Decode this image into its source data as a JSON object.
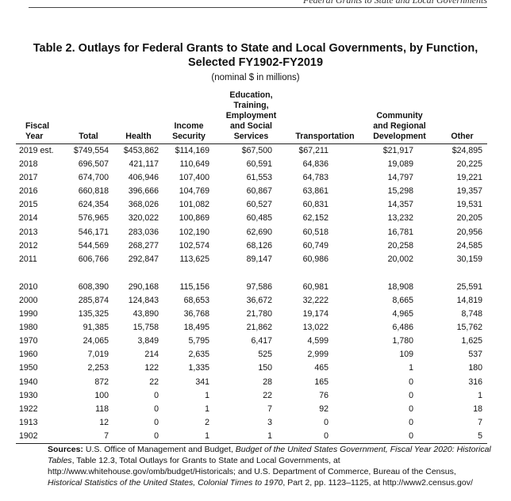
{
  "page": {
    "running_header": "Federal Grants to State and Local Governments",
    "title_line1": "Table 2. Outlays for Federal Grants to State and Local Governments, by Function,",
    "title_line2": "Selected FY1902-FY2019",
    "subtitle": "(nominal $ in millions)"
  },
  "table": {
    "headers": [
      "Fiscal\nYear",
      "Total",
      "Health",
      "Income\nSecurity",
      "Education,\nTraining,\nEmployment\nand Social\nServices",
      "Transportation",
      "Community\nand Regional\nDevelopment",
      "Other"
    ],
    "rows_group1": [
      [
        "2019 est.",
        "$749,554",
        "$453,862",
        "$114,169",
        "$67,500",
        "$67,211",
        "$21,917",
        "$24,895"
      ],
      [
        "2018",
        "696,507",
        "421,117",
        "110,649",
        "60,591",
        "64,836",
        "19,089",
        "20,225"
      ],
      [
        "2017",
        "674,700",
        "406,946",
        "107,400",
        "61,553",
        "64,783",
        "14,797",
        "19,221"
      ],
      [
        "2016",
        "660,818",
        "396,666",
        "104,769",
        "60,867",
        "63,861",
        "15,298",
        "19,357"
      ],
      [
        "2015",
        "624,354",
        "368,026",
        "101,082",
        "60,527",
        "60,831",
        "14,357",
        "19,531"
      ],
      [
        "2014",
        "576,965",
        "320,022",
        "100,869",
        "60,485",
        "62,152",
        "13,232",
        "20,205"
      ],
      [
        "2013",
        "546,171",
        "283,036",
        "102,190",
        "62,690",
        "60,518",
        "16,781",
        "20,956"
      ],
      [
        "2012",
        "544,569",
        "268,277",
        "102,574",
        "68,126",
        "60,749",
        "20,258",
        "24,585"
      ],
      [
        "2011",
        "606,766",
        "292,847",
        "113,625",
        "89,147",
        "60,986",
        "20,002",
        "30,159"
      ]
    ],
    "rows_group2": [
      [
        "2010",
        "608,390",
        "290,168",
        "115,156",
        "97,586",
        "60,981",
        "18,908",
        "25,591"
      ],
      [
        "2000",
        "285,874",
        "124,843",
        "68,653",
        "36,672",
        "32,222",
        "8,665",
        "14,819"
      ],
      [
        "1990",
        "135,325",
        "43,890",
        "36,768",
        "21,780",
        "19,174",
        "4,965",
        "8,748"
      ],
      [
        "1980",
        "91,385",
        "15,758",
        "18,495",
        "21,862",
        "13,022",
        "6,486",
        "15,762"
      ],
      [
        "1970",
        "24,065",
        "3,849",
        "5,795",
        "6,417",
        "4,599",
        "1,780",
        "1,625"
      ],
      [
        "1960",
        "7,019",
        "214",
        "2,635",
        "525",
        "2,999",
        "109",
        "537"
      ],
      [
        "1950",
        "2,253",
        "122",
        "1,335",
        "150",
        "465",
        "1",
        "180"
      ],
      [
        "1940",
        "872",
        "22",
        "341",
        "28",
        "165",
        "0",
        "316"
      ],
      [
        "1930",
        "100",
        "0",
        "1",
        "22",
        "76",
        "0",
        "1"
      ],
      [
        "1922",
        "118",
        "0",
        "1",
        "7",
        "92",
        "0",
        "18"
      ],
      [
        "1913",
        "12",
        "0",
        "2",
        "3",
        "0",
        "0",
        "7"
      ],
      [
        "1902",
        "7",
        "0",
        "1",
        "1",
        "0",
        "0",
        "5"
      ]
    ]
  },
  "sources": {
    "label": "Sources:",
    "text1": " U.S. Office of Management and Budget, ",
    "italic1": "Budget of the United States Government, Fiscal Year 2020: Historical Tables",
    "text2": ", Table 12.3, Total Outlays for Grants to State and Local Governments, at http://www.whitehouse.gov/omb/budget/Historicals; and U.S. Department of Commerce, Bureau of the Census, ",
    "italic2": "Historical Statistics of the United States, Colonial Times to 1970",
    "text3": ", Part 2, pp. 1123–1125, at http://www2.census.gov/"
  }
}
